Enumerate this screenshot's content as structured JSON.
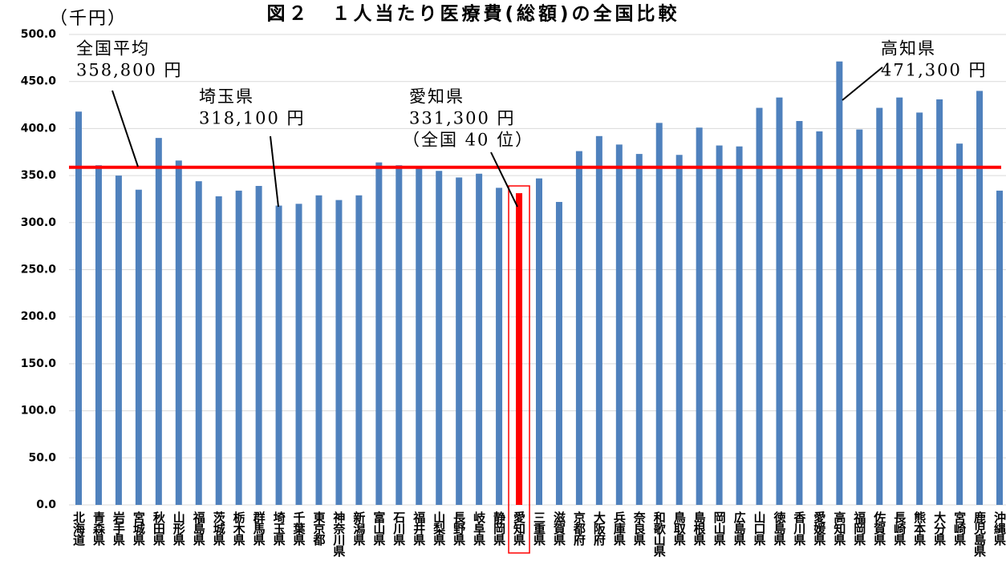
{
  "chart_data": {
    "type": "bar",
    "title": "図２　１人当たり医療費(総額)の全国比較",
    "unit_label": "（千円）",
    "categories": [
      "北海道",
      "青森県",
      "岩手県",
      "宮城県",
      "秋田県",
      "山形県",
      "福島県",
      "茨城県",
      "栃木県",
      "群馬県",
      "埼玉県",
      "千葉県",
      "東京都",
      "神奈川県",
      "新潟県",
      "富山県",
      "石川県",
      "福井県",
      "山梨県",
      "長野県",
      "岐阜県",
      "静岡県",
      "愛知県",
      "三重県",
      "滋賀県",
      "京都府",
      "大阪府",
      "兵庫県",
      "奈良県",
      "和歌山県",
      "鳥取県",
      "島根県",
      "岡山県",
      "広島県",
      "山口県",
      "徳島県",
      "香川県",
      "愛媛県",
      "高知県",
      "福岡県",
      "佐賀県",
      "長崎県",
      "熊本県",
      "大分県",
      "宮崎県",
      "鹿児島県",
      "沖縄県"
    ],
    "values": [
      418,
      361,
      350,
      335,
      390,
      366,
      344,
      328,
      334,
      339,
      318.1,
      320,
      329,
      324,
      329,
      364,
      361,
      358,
      355,
      348,
      352,
      337,
      331.3,
      347,
      322,
      376,
      392,
      383,
      373,
      406,
      372,
      401,
      382,
      381,
      422,
      433,
      408,
      397,
      471.3,
      399,
      422,
      433,
      417,
      431,
      384,
      440,
      334
    ],
    "colors": [
      "#4f81bd",
      "#4f81bd",
      "#4f81bd",
      "#4f81bd",
      "#4f81bd",
      "#4f81bd",
      "#4f81bd",
      "#4f81bd",
      "#4f81bd",
      "#4f81bd",
      "#4f81bd",
      "#4f81bd",
      "#4f81bd",
      "#4f81bd",
      "#4f81bd",
      "#4f81bd",
      "#4f81bd",
      "#4f81bd",
      "#4f81bd",
      "#4f81bd",
      "#4f81bd",
      "#4f81bd",
      "#ff0000",
      "#4f81bd",
      "#4f81bd",
      "#4f81bd",
      "#4f81bd",
      "#4f81bd",
      "#4f81bd",
      "#4f81bd",
      "#4f81bd",
      "#4f81bd",
      "#4f81bd",
      "#4f81bd",
      "#4f81bd",
      "#4f81bd",
      "#4f81bd",
      "#4f81bd",
      "#4f81bd",
      "#4f81bd",
      "#4f81bd",
      "#4f81bd",
      "#4f81bd",
      "#4f81bd",
      "#4f81bd",
      "#4f81bd",
      "#4f81bd"
    ],
    "ylim": [
      0,
      500
    ],
    "yticks": [
      {
        "value": 0,
        "label": "0.0"
      },
      {
        "value": 50,
        "label": "50.0"
      },
      {
        "value": 100,
        "label": "100.0"
      },
      {
        "value": 150,
        "label": "150.0"
      },
      {
        "value": 200,
        "label": "200.0"
      },
      {
        "value": 250,
        "label": "250.0"
      },
      {
        "value": 300,
        "label": "300.0"
      },
      {
        "value": 350,
        "label": "350.0"
      },
      {
        "value": 400,
        "label": "400.0"
      },
      {
        "value": 450,
        "label": "450.0"
      },
      {
        "value": 500,
        "label": "500.0"
      }
    ],
    "grid": true,
    "reference_line": {
      "value": 358.8,
      "color": "#ff0000"
    },
    "annotations": [
      {
        "lines": [
          "全国平均",
          "358,800 円"
        ]
      },
      {
        "lines": [
          "埼玉県",
          "318,100 円"
        ]
      },
      {
        "lines": [
          "愛知県",
          "331,300 円",
          "（全国 40 位）"
        ]
      },
      {
        "lines": [
          "高知県",
          "471,300 円"
        ]
      }
    ]
  }
}
